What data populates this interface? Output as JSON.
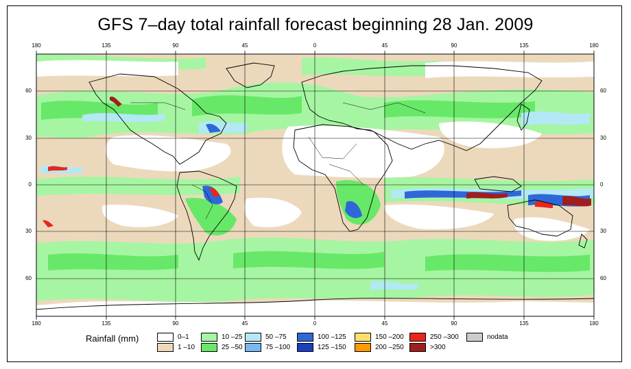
{
  "title": "GFS 7–day total rainfall forecast beginning 28 Jan. 2009",
  "axes": {
    "lon_ticks": [
      "180",
      "135",
      "90",
      "45",
      "0",
      "45",
      "90",
      "135",
      "180"
    ],
    "lat_ticks": [
      "60",
      "30",
      "0",
      "30",
      "60"
    ]
  },
  "legend": {
    "title": "Rainfall (mm)",
    "items": [
      {
        "label": "0–1",
        "color": "#ffffff"
      },
      {
        "label": "1 –10",
        "color": "#ecd9bc"
      },
      {
        "label": "10 –25",
        "color": "#a6f5a2"
      },
      {
        "label": "25 –50",
        "color": "#68e868"
      },
      {
        "label": "50 –75",
        "color": "#b3e8f5"
      },
      {
        "label": "75 –100",
        "color": "#7ab8f0"
      },
      {
        "label": "100 –125",
        "color": "#2e68d8"
      },
      {
        "label": "125 –150",
        "color": "#1a3fbf"
      },
      {
        "label": "150 –200",
        "color": "#ffdf6b"
      },
      {
        "label": "200 –250",
        "color": "#ff9900"
      },
      {
        "label": "250 –300",
        "color": "#e8261a"
      },
      {
        "label": ">300",
        "color": "#a01e1e"
      },
      {
        "label": "nodata",
        "color": "#cccccc"
      }
    ]
  }
}
